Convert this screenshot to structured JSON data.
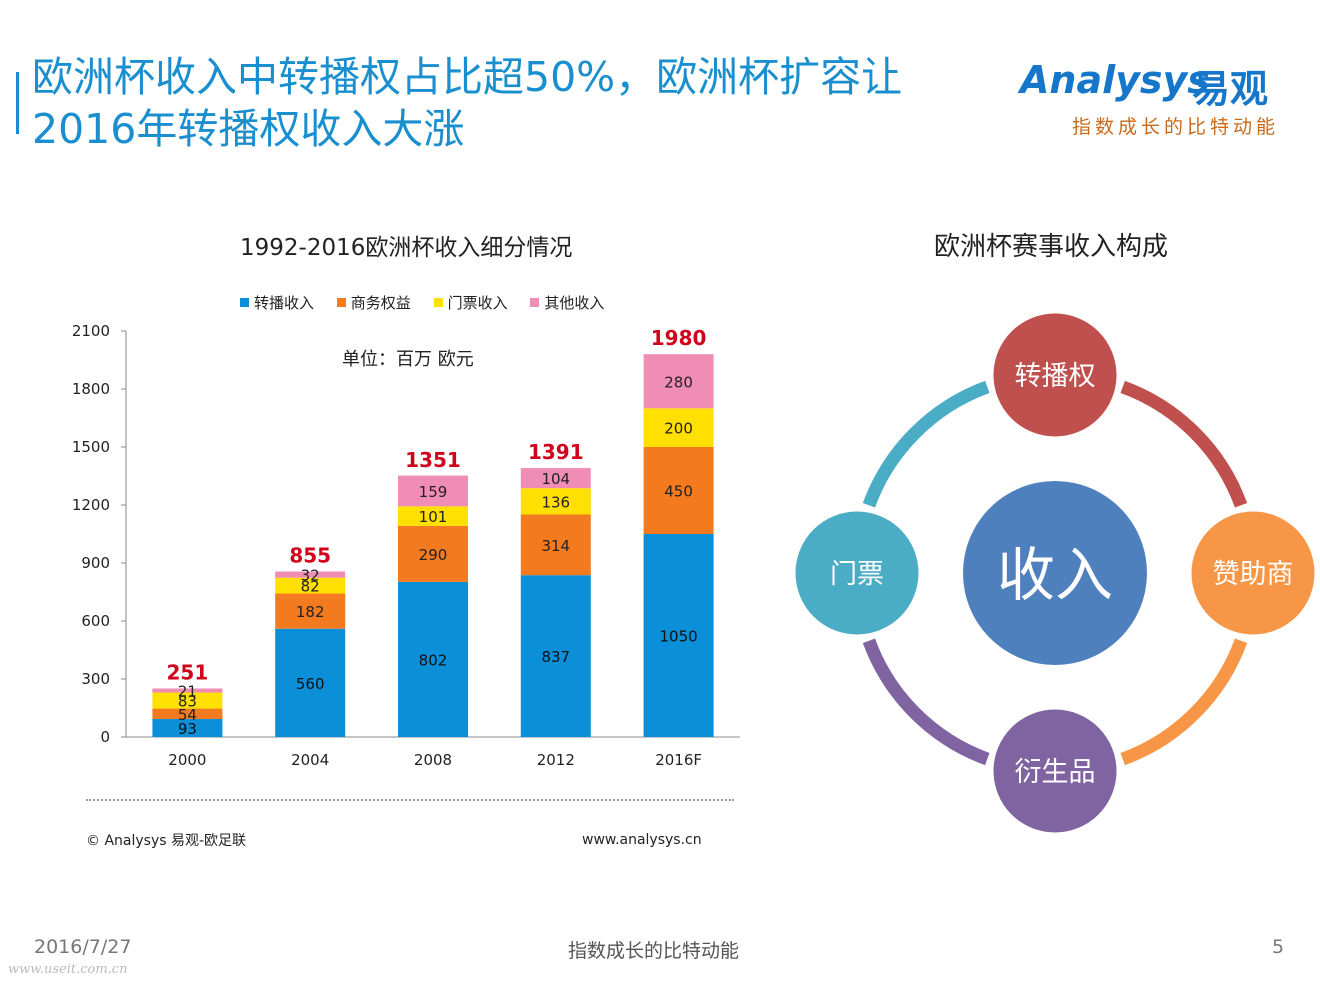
{
  "header": {
    "title_line1": "欧洲杯收入中转播权占比超50%，欧洲杯扩容让",
    "title_line2": "2016年转播权收入大涨"
  },
  "logo": {
    "text": "Analysys",
    "cn": "易观",
    "slogan": "指数成长的比特动能"
  },
  "chart_data": {
    "type": "bar",
    "stacked": true,
    "title": "1992-2016欧洲杯收入细分情况",
    "unit_note": "单位：百万 欧元",
    "categories": [
      "2000",
      "2004",
      "2008",
      "2012",
      "2016F"
    ],
    "series": [
      {
        "name": "转播收入",
        "color": "#0a8fd8",
        "values": [
          93,
          560,
          802,
          837,
          1050
        ]
      },
      {
        "name": "商务权益",
        "color": "#f47a20",
        "values": [
          54,
          182,
          290,
          314,
          450
        ]
      },
      {
        "name": "门票收入",
        "color": "#ffe000",
        "values": [
          83,
          82,
          101,
          136,
          200
        ]
      },
      {
        "name": "其他收入",
        "color": "#f08db4",
        "values": [
          21,
          32,
          159,
          104,
          280
        ]
      }
    ],
    "totals": [
      251,
      855,
      1351,
      1391,
      1980
    ],
    "total_color": "#d0021b",
    "ylim": [
      0,
      2100
    ],
    "yticks": [
      0,
      300,
      600,
      900,
      1200,
      1500,
      1800,
      2100
    ],
    "xlabel": "",
    "ylabel": ""
  },
  "diagram": {
    "title": "欧洲杯赛事收入构成",
    "center": {
      "label": "收入",
      "color": "#4e80bd"
    },
    "nodes": [
      {
        "label": "转播权",
        "color": "#c0504d"
      },
      {
        "label": "赞助商",
        "color": "#f79646"
      },
      {
        "label": "衍生品",
        "color": "#8064a2"
      },
      {
        "label": "门票",
        "color": "#4bacc6"
      }
    ]
  },
  "footer": {
    "copyright": "© Analysys 易观-欧足联",
    "website": "www.analysys.cn",
    "date": "2016/7/27",
    "slogan": "指数成长的比特动能",
    "page": "5",
    "watermark": "www.useit.com.cn"
  }
}
